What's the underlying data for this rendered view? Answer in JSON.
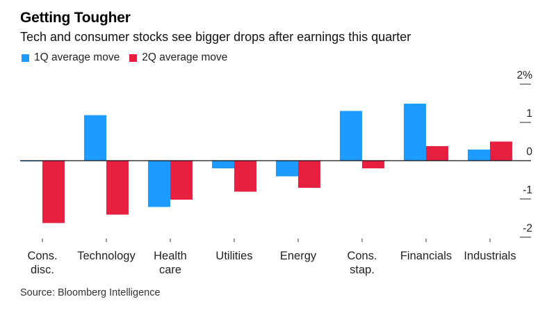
{
  "chart_data": {
    "type": "bar",
    "title": "Getting Tougher",
    "subtitle": "Tech and consumer stocks see bigger drops after earnings this quarter",
    "xlabel": "",
    "ylabel": "",
    "ylim": [
      -2,
      2
    ],
    "yticks": [
      {
        "value": 2,
        "label": "2%"
      },
      {
        "value": 1,
        "label": "1"
      },
      {
        "value": 0,
        "label": "0"
      },
      {
        "value": -1,
        "label": "-1"
      },
      {
        "value": -2,
        "label": "-2"
      }
    ],
    "grid": false,
    "legend_position": "top-left",
    "categories": [
      [
        "Cons.",
        "disc."
      ],
      [
        "Technology"
      ],
      [
        "Health",
        "care"
      ],
      [
        "Utilities"
      ],
      [
        "Energy"
      ],
      [
        "Cons.",
        "stap."
      ],
      [
        "Financials"
      ],
      [
        "Industrials"
      ]
    ],
    "series": [
      {
        "name": "1Q average move",
        "color": "#1e9bff",
        "values": [
          -0.02,
          1.19,
          -1.21,
          -0.2,
          -0.41,
          1.3,
          1.49,
          0.29
        ]
      },
      {
        "name": "2Q average move",
        "color": "#e8203f",
        "values": [
          -1.63,
          -1.41,
          -1.02,
          -0.81,
          -0.71,
          -0.2,
          0.38,
          0.5
        ]
      }
    ],
    "source": "Source: Bloomberg Intelligence"
  }
}
